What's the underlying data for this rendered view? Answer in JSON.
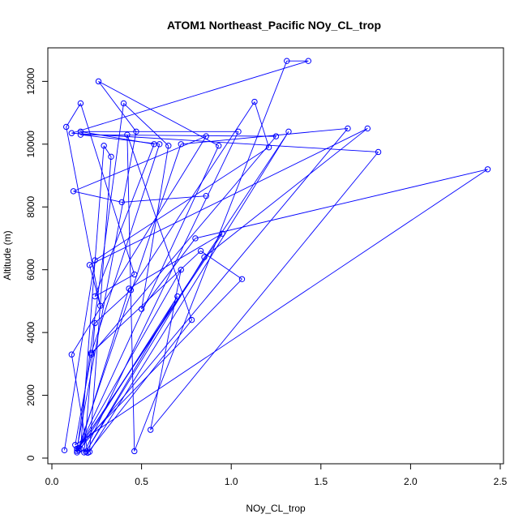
{
  "chart_data": {
    "type": "line",
    "title": "ATOM1 Northeast_Pacific NOy_CL_trop",
    "xlabel": "NOy_CL_trop",
    "ylabel": "Altitude (m)",
    "xlim": [
      0,
      2.5
    ],
    "ylim": [
      0,
      12500
    ],
    "xticks": [
      "0.0",
      "0.5",
      "1.0",
      "1.5",
      "2.0",
      "2.5"
    ],
    "yticks": [
      "0",
      "2000",
      "4000",
      "6000",
      "8000",
      "10000",
      "12000"
    ],
    "xtick_values": [
      0,
      0.5,
      1.0,
      1.5,
      2.0,
      2.5
    ],
    "ytick_values": [
      0,
      2000,
      4000,
      6000,
      8000,
      10000,
      12000
    ],
    "legend": "none",
    "grid": false,
    "style": "line with open circle markers",
    "color": "#0000ff",
    "series": [
      {
        "x": [
          0.07,
          0.24,
          1.21,
          1.13,
          0.44,
          0.24,
          0.18,
          1.04,
          0.16,
          0.57,
          0.24,
          0.46,
          0.16,
          0.08,
          0.27,
          0.21,
          1.76,
          0.85,
          0.19,
          0.7,
          0.16,
          0.29,
          0.33,
          0.21,
          1.32,
          0.14,
          0.4,
          0.65,
          0.5,
          0.8,
          2.43,
          0.13,
          0.22,
          1.25,
          0.16,
          0.6,
          0.22,
          0.83,
          1.06,
          0.14,
          0.47,
          0.26,
          0.93,
          0.14,
          0.72,
          1.65,
          0.15,
          0.43,
          0.95,
          0.15,
          0.72,
          0.55,
          1.82,
          0.11,
          1.43,
          1.31,
          0.46,
          0.42,
          0.78,
          0.2,
          0.11,
          0.86,
          0.12,
          0.39,
          0.86
        ],
        "y": [
          250,
          6300,
          9900,
          11350,
          5350,
          4300,
          180,
          10400,
          10400,
          10000,
          5150,
          5850,
          11300,
          10550,
          4850,
          6150,
          10500,
          6400,
          200,
          5150,
          300,
          9950,
          9600,
          200,
          10400,
          230,
          11300,
          9950,
          4750,
          7000,
          9200,
          420,
          3300,
          10250,
          10300,
          10000,
          3350,
          6600,
          5700,
          300,
          10400,
          12000,
          9950,
          180,
          10000,
          10500,
          250,
          5400,
          7150,
          320,
          6000,
          900,
          9750,
          10350,
          12650,
          12650,
          220,
          10300,
          4400,
          170,
          3300,
          10250,
          8500,
          8150,
          8350
        ]
      }
    ]
  }
}
